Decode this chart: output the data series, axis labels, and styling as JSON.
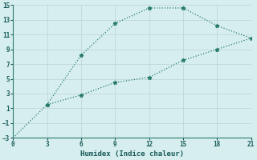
{
  "line1_x": [
    0,
    3,
    6,
    9,
    12,
    15,
    18,
    21
  ],
  "line1_y": [
    -3,
    1.5,
    2.8,
    4.5,
    5.2,
    7.5,
    9.0,
    10.5
  ],
  "line2_x": [
    3,
    6,
    9,
    12,
    15,
    18,
    21
  ],
  "line2_y": [
    1.5,
    8.2,
    12.5,
    14.6,
    14.6,
    12.2,
    10.5
  ],
  "line_color": "#2a7d6e",
  "bg_color": "#d6eeee",
  "grid_color": "#c0d8d8",
  "xlabel": "Humidex (Indice chaleur)",
  "xlim": [
    0,
    21
  ],
  "ylim": [
    -3,
    15
  ],
  "xticks": [
    0,
    3,
    6,
    9,
    12,
    15,
    18,
    21
  ],
  "yticks": [
    -3,
    -1,
    1,
    3,
    5,
    7,
    9,
    11,
    13,
    15
  ],
  "marker": "*",
  "markersize": 3.5,
  "linewidth": 0.9,
  "linestyle": ":"
}
